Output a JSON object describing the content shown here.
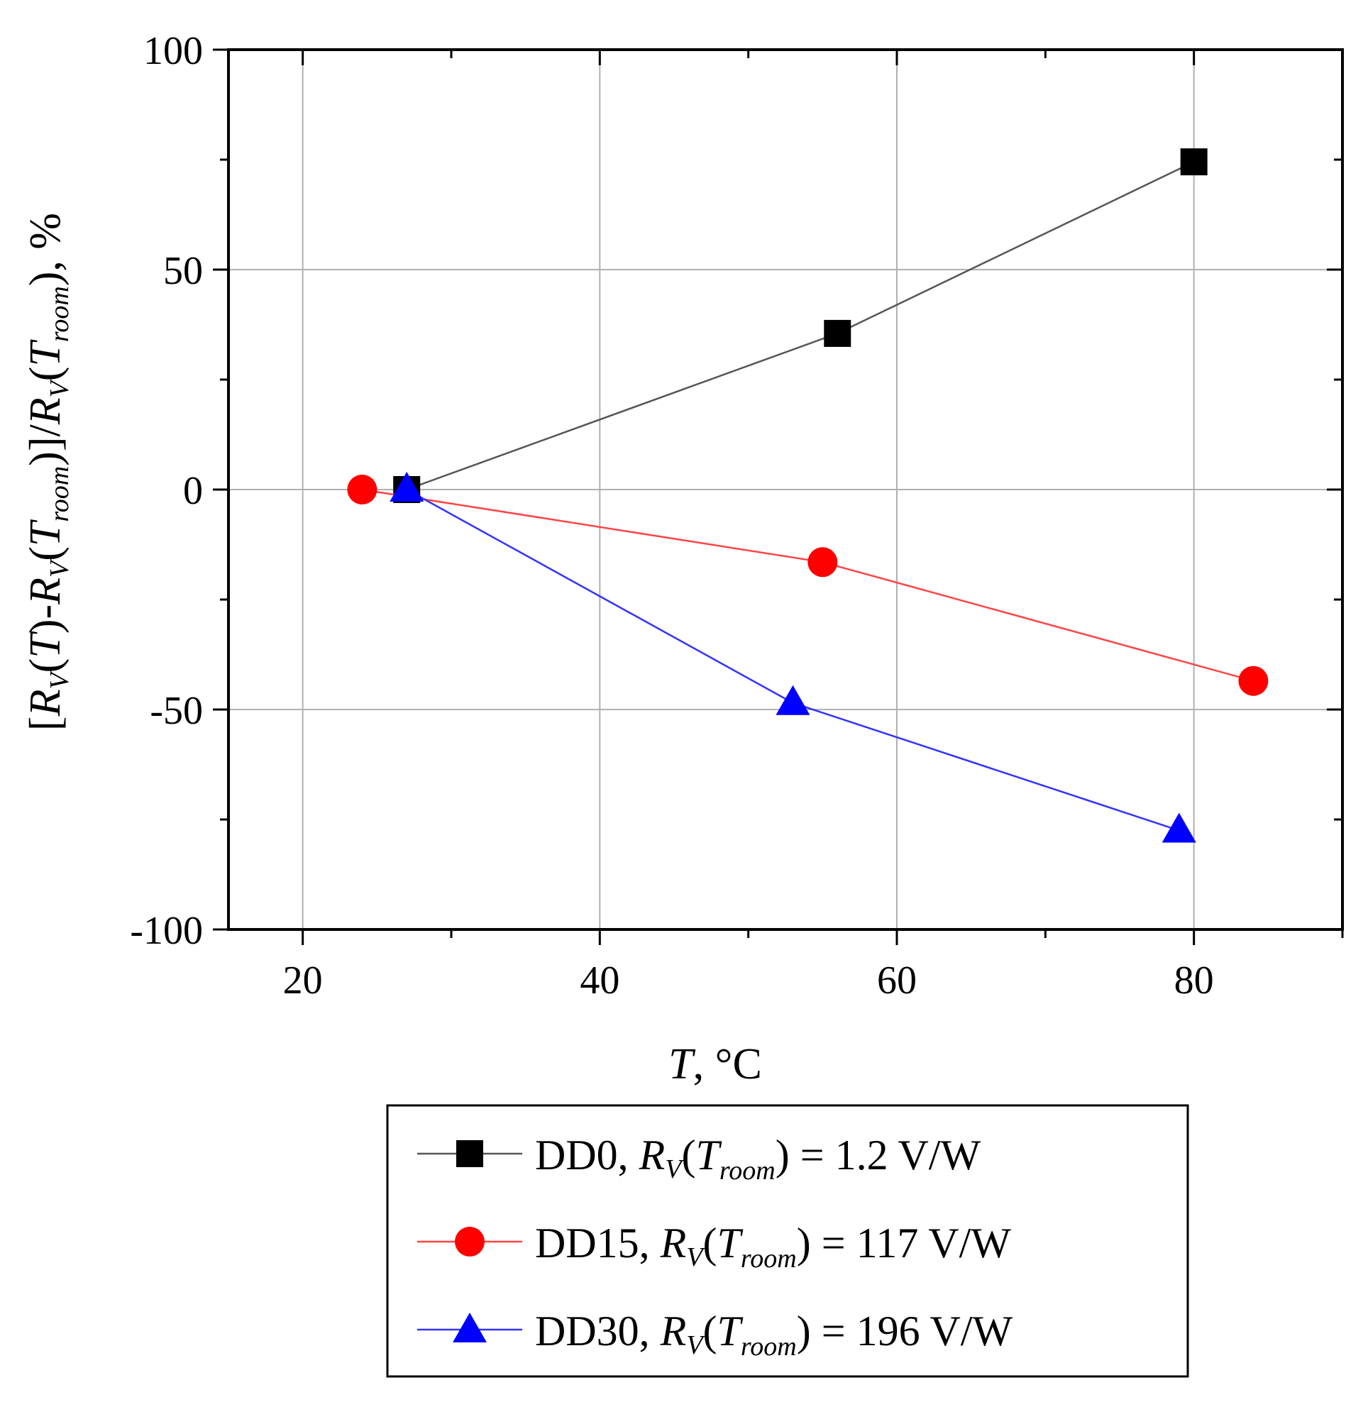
{
  "chart_data": {
    "type": "line",
    "xlabel": {
      "var": "T",
      "unit": ", °C"
    },
    "ylabel": {
      "p1": "[",
      "R": "R",
      "V": "V",
      "T": "T",
      "room": "room",
      "open": "(",
      "close": ")",
      "minus": "-",
      "slash": "]/",
      "pct": ", %"
    },
    "xlim": [
      15,
      90
    ],
    "ylim": [
      -100,
      100
    ],
    "xticks": [
      20,
      40,
      60,
      80
    ],
    "yticks": [
      -100,
      -50,
      0,
      50,
      100
    ],
    "xminor": [
      30,
      50,
      70,
      90
    ],
    "yminor": [
      -75,
      -25,
      25,
      75
    ],
    "grid": true,
    "legend_position": "below",
    "series": [
      {
        "id": "dd0",
        "name": "DD0",
        "color": "#000000",
        "line_color": "#555555",
        "marker": "square",
        "x": [
          27,
          56,
          80
        ],
        "y": [
          0,
          35.5,
          74.5
        ],
        "legend": {
          "name": "DD0",
          "value": "1.2 V/W"
        }
      },
      {
        "id": "dd15",
        "name": "DD15",
        "color": "#ff0000",
        "line_color": "#ff4444",
        "marker": "circle",
        "x": [
          24,
          55,
          84
        ],
        "y": [
          0,
          -16.5,
          -43.5
        ],
        "legend": {
          "name": "DD15",
          "value": "117 V/W"
        }
      },
      {
        "id": "dd30",
        "name": "DD30",
        "color": "#0000ff",
        "line_color": "#3333ff",
        "marker": "triangle",
        "x": [
          27,
          53,
          79
        ],
        "y": [
          0,
          -48.5,
          -77.5
        ],
        "legend": {
          "name": "DD30",
          "value": "196 V/W"
        }
      }
    ]
  }
}
